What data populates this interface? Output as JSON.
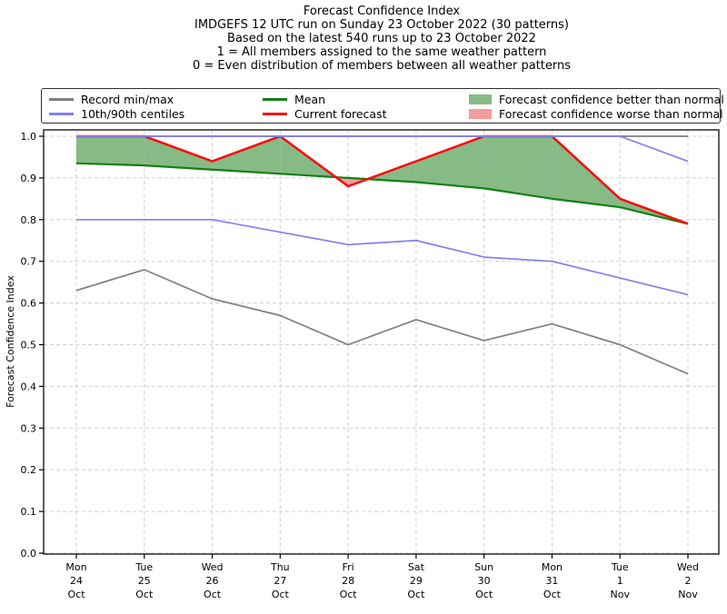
{
  "colors": {
    "record": "#7f7f7f",
    "centile": "#8080f2",
    "mean": "#157f15",
    "current": "#f50f0f",
    "better": "#86bb86",
    "worse": "#f59b9b",
    "grid": "#d0d0d0",
    "spine": "#2a2a2a",
    "tick": "#000000"
  },
  "legend": {
    "items": [
      {
        "label": "Record min/max",
        "swatch": "line",
        "color_key": "record"
      },
      {
        "label": "10th/90th centiles",
        "swatch": "line",
        "color_key": "centile"
      },
      {
        "label": "Mean",
        "swatch": "line",
        "color_key": "mean"
      },
      {
        "label": "Current forecast",
        "swatch": "line",
        "color_key": "current"
      },
      {
        "label": "Forecast confidence better than normal",
        "swatch": "patch",
        "color_key": "better"
      },
      {
        "label": "Forecast confidence worse than normal",
        "swatch": "patch",
        "color_key": "worse"
      }
    ]
  },
  "chart_data": {
    "type": "line",
    "title_lines": [
      "Forecast Confidence Index",
      "IMDGEFS 12 UTC run on Sunday 23 October 2022 (30 patterns)",
      "Based on the latest 540 runs up to 23 October 2022",
      "1 = All members assigned to the same weather pattern",
      "0 = Even distribution of members between all weather patterns"
    ],
    "ylabel": "Forecast Confidence Index",
    "ylim": [
      0.0,
      1.0
    ],
    "yticks": [
      "0.0",
      "0.1",
      "0.2",
      "0.3",
      "0.4",
      "0.5",
      "0.6",
      "0.7",
      "0.8",
      "0.9",
      "1.0"
    ],
    "grid": true,
    "legend_position": "top",
    "categories": [
      {
        "weekday": "Mon",
        "day": "24",
        "month": "Oct"
      },
      {
        "weekday": "Tue",
        "day": "25",
        "month": "Oct"
      },
      {
        "weekday": "Wed",
        "day": "26",
        "month": "Oct"
      },
      {
        "weekday": "Thu",
        "day": "27",
        "month": "Oct"
      },
      {
        "weekday": "Fri",
        "day": "28",
        "month": "Oct"
      },
      {
        "weekday": "Sat",
        "day": "29",
        "month": "Oct"
      },
      {
        "weekday": "Sun",
        "day": "30",
        "month": "Oct"
      },
      {
        "weekday": "Mon",
        "day": "31",
        "month": "Oct"
      },
      {
        "weekday": "Tue",
        "day": "1",
        "month": "Nov"
      },
      {
        "weekday": "Wed",
        "day": "2",
        "month": "Nov"
      }
    ],
    "series": [
      {
        "name": "Record max",
        "color_key": "record",
        "values": [
          1.0,
          1.0,
          1.0,
          1.0,
          1.0,
          1.0,
          1.0,
          1.0,
          1.0,
          1.0
        ]
      },
      {
        "name": "Record min",
        "color_key": "record",
        "values": [
          0.63,
          0.68,
          0.61,
          0.57,
          0.5,
          0.56,
          0.51,
          0.55,
          0.5,
          0.43
        ]
      },
      {
        "name": "90th centile",
        "color_key": "centile",
        "values": [
          1.0,
          1.0,
          1.0,
          1.0,
          1.0,
          1.0,
          1.0,
          1.0,
          1.0,
          0.94
        ]
      },
      {
        "name": "10th centile",
        "color_key": "centile",
        "values": [
          0.8,
          0.8,
          0.8,
          0.77,
          0.74,
          0.75,
          0.71,
          0.7,
          0.66,
          0.62
        ]
      },
      {
        "name": "Mean",
        "color_key": "mean",
        "values": [
          0.935,
          0.93,
          0.92,
          0.91,
          0.9,
          0.89,
          0.875,
          0.85,
          0.83,
          0.79
        ]
      },
      {
        "name": "Current forecast",
        "color_key": "current",
        "values": [
          1.0,
          1.0,
          0.94,
          1.0,
          0.88,
          0.94,
          1.0,
          1.0,
          0.85,
          0.79
        ]
      }
    ],
    "fills": {
      "between": [
        "Current forecast",
        "Mean"
      ],
      "better_color_key": "better",
      "worse_color_key": "worse"
    }
  }
}
